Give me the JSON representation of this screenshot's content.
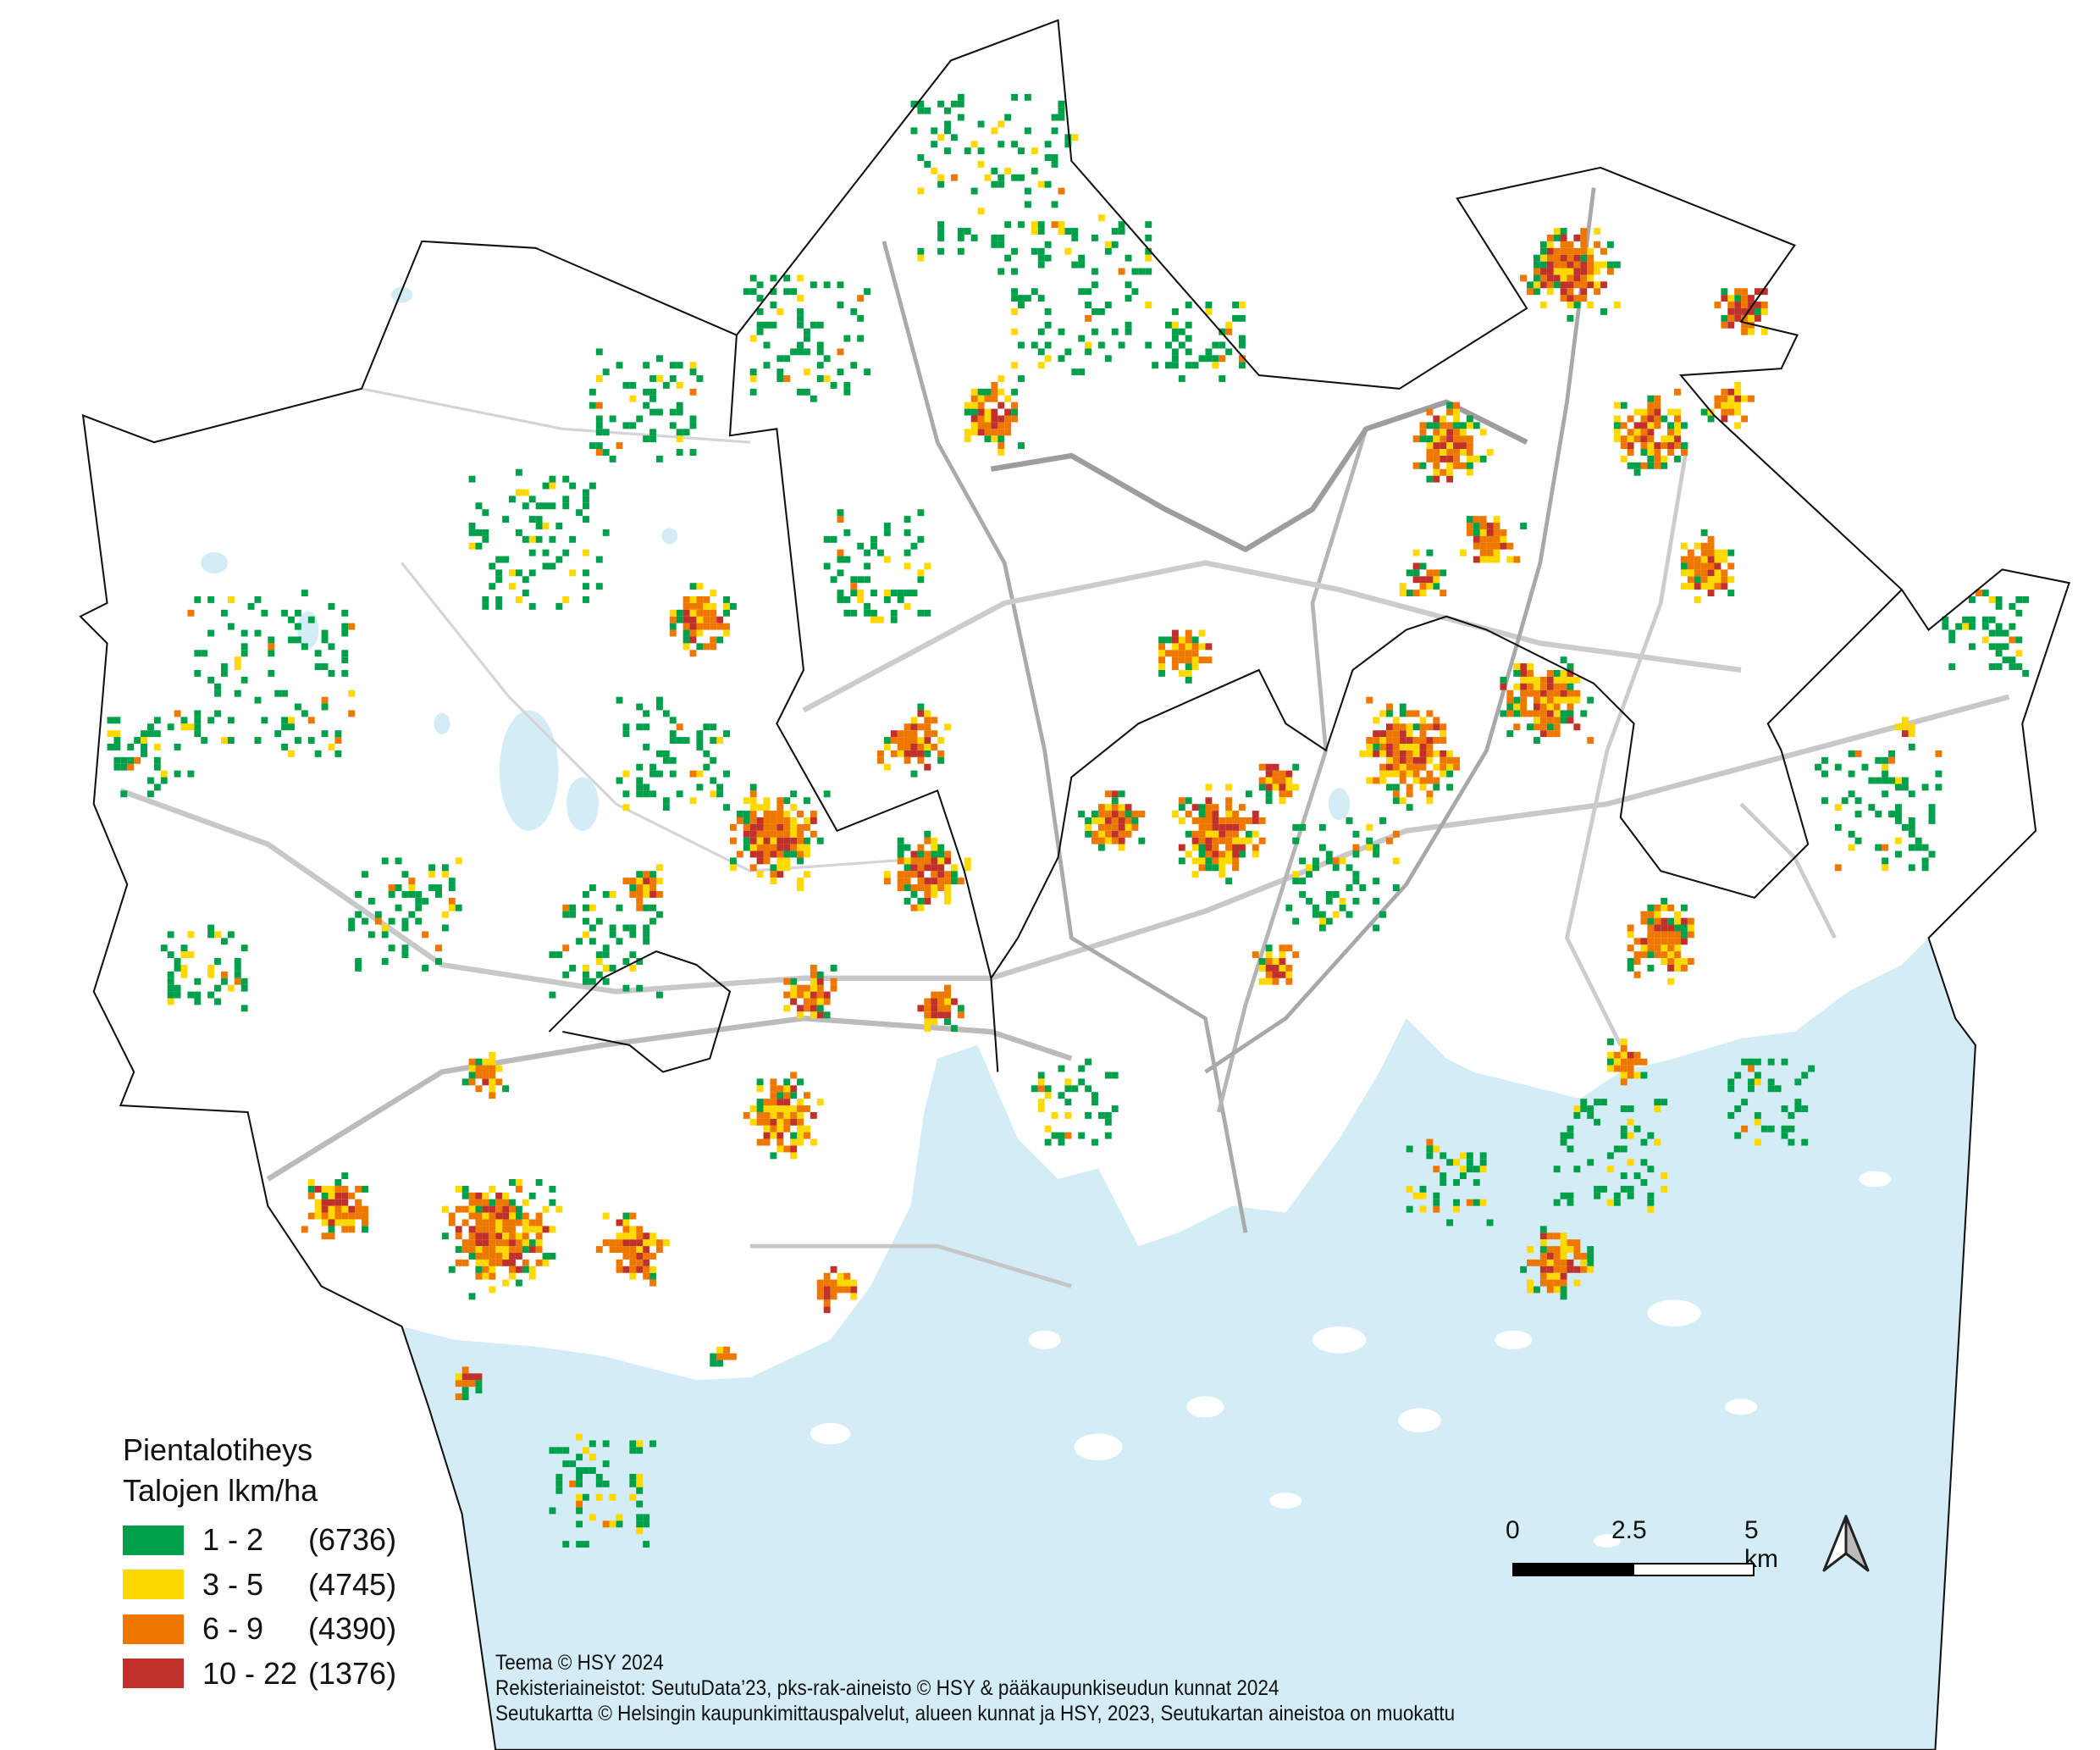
{
  "legend": {
    "title": "Pientalotiheys",
    "subtitle": "Talojen lkm/ha",
    "classes": [
      {
        "range": "1 - 2",
        "count": "(6736)",
        "color": "#00a04b"
      },
      {
        "range": "3 - 5",
        "count": "(4745)",
        "color": "#ffd800"
      },
      {
        "range": "6 - 9",
        "count": "(4390)",
        "color": "#ee7700"
      },
      {
        "range": "10 - 22",
        "count": "(1376)",
        "color": "#c0312b"
      }
    ]
  },
  "scale_bar": {
    "labels": [
      "0",
      "2.5",
      "5 km"
    ]
  },
  "north_arrow": {
    "icon": "north-arrow-icon"
  },
  "credits": [
    "Teema © HSY 2024",
    "Rekisteriaineistot: SeutuData’23, pks-rak-aineisto © HSY & pääkaupunkiseudun kunnat 2024",
    "Seutukartta © Helsingin kaupunkimittauspalvelut, alueen kunnat ja HSY, 2023, Seutukartan aineistoa on muokattu"
  ],
  "colors": {
    "sea": "#d3ecf6",
    "land": "#ffffff",
    "roads": "#c8c8c8",
    "boundary": "#111111"
  }
}
